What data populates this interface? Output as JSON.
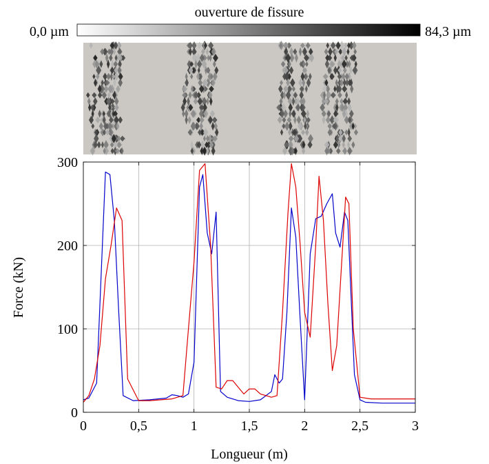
{
  "colorbar": {
    "title": "ouverture de fissure",
    "min_label": "0,0 µm",
    "max_label": "84,3 µm",
    "gradient": [
      "#ffffff",
      "#000000"
    ]
  },
  "crack_map": {
    "background": "#cbc8c3",
    "crack_bands_x": [
      0.2,
      1.05,
      1.9,
      2.3
    ]
  },
  "chart_data": {
    "type": "line",
    "xlabel": "Longueur (m)",
    "ylabel": "Force (kN)",
    "xlim": [
      0,
      3
    ],
    "ylim": [
      0,
      300
    ],
    "xticks": [
      0,
      0.5,
      1,
      1.5,
      2,
      2.5,
      3
    ],
    "xtick_labels": [
      "0",
      "0,5",
      "1",
      "1,5",
      "2",
      "2,5",
      "3"
    ],
    "yticks": [
      0,
      100,
      200,
      300
    ],
    "ytick_labels": [
      "0",
      "100",
      "200",
      "300"
    ],
    "grid": true,
    "series": [
      {
        "color": "#0000cc",
        "x": [
          0,
          0.05,
          0.12,
          0.2,
          0.24,
          0.28,
          0.32,
          0.36,
          0.45,
          0.6,
          0.75,
          0.8,
          0.85,
          0.9,
          0.95,
          1.0,
          1.05,
          1.08,
          1.12,
          1.16,
          1.2,
          1.24,
          1.3,
          1.4,
          1.5,
          1.6,
          1.7,
          1.73,
          1.77,
          1.8,
          1.84,
          1.88,
          1.92,
          1.96,
          2.0,
          2.05,
          2.1,
          2.15,
          2.2,
          2.25,
          2.28,
          2.32,
          2.36,
          2.39,
          2.45,
          2.5,
          2.55,
          2.7,
          3.0
        ],
        "values": [
          15,
          17,
          35,
          288,
          285,
          230,
          120,
          20,
          14,
          15,
          17,
          21,
          20,
          18,
          22,
          60,
          270,
          285,
          215,
          190,
          240,
          25,
          18,
          14,
          13,
          15,
          25,
          45,
          35,
          40,
          120,
          245,
          210,
          110,
          15,
          190,
          232,
          235,
          250,
          262,
          215,
          198,
          240,
          230,
          45,
          15,
          12,
          11,
          11
        ]
      },
      {
        "color": "#dd0000",
        "x": [
          0,
          0.05,
          0.1,
          0.15,
          0.2,
          0.25,
          0.3,
          0.35,
          0.4,
          0.5,
          0.6,
          0.7,
          0.8,
          0.85,
          0.9,
          0.95,
          1.0,
          1.05,
          1.1,
          1.15,
          1.2,
          1.25,
          1.3,
          1.35,
          1.4,
          1.45,
          1.5,
          1.55,
          1.6,
          1.7,
          1.75,
          1.8,
          1.85,
          1.88,
          1.92,
          1.96,
          2.0,
          2.05,
          2.1,
          2.13,
          2.17,
          2.21,
          2.25,
          2.29,
          2.33,
          2.37,
          2.4,
          2.44,
          2.5,
          2.6,
          2.8,
          3.0
        ],
        "values": [
          12,
          20,
          40,
          80,
          160,
          200,
          245,
          230,
          40,
          14,
          14,
          15,
          16,
          18,
          20,
          100,
          180,
          290,
          298,
          200,
          30,
          28,
          38,
          38,
          30,
          22,
          28,
          28,
          22,
          18,
          20,
          120,
          240,
          298,
          270,
          200,
          120,
          90,
          200,
          283,
          230,
          130,
          50,
          80,
          170,
          258,
          250,
          100,
          18,
          16,
          16,
          16
        ]
      }
    ]
  }
}
